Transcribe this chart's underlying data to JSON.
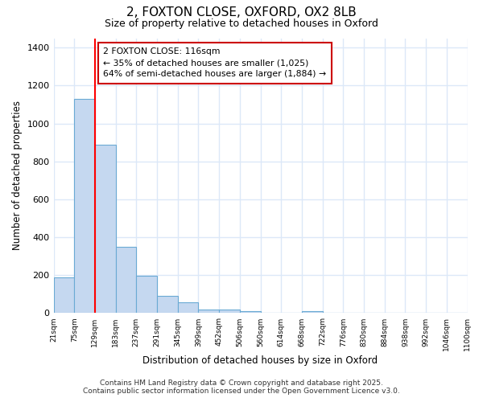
{
  "title1": "2, FOXTON CLOSE, OXFORD, OX2 8LB",
  "title2": "Size of property relative to detached houses in Oxford",
  "xlabel": "Distribution of detached houses by size in Oxford",
  "ylabel": "Number of detached properties",
  "bar_values": [
    190,
    1130,
    890,
    350,
    195,
    90,
    55,
    20,
    20,
    12,
    0,
    0,
    12,
    0,
    0,
    0,
    0,
    0,
    0,
    0
  ],
  "bin_labels": [
    "21sqm",
    "75sqm",
    "129sqm",
    "183sqm",
    "237sqm",
    "291sqm",
    "345sqm",
    "399sqm",
    "452sqm",
    "506sqm",
    "560sqm",
    "614sqm",
    "668sqm",
    "722sqm",
    "776sqm",
    "830sqm",
    "884sqm",
    "938sqm",
    "992sqm",
    "1046sqm",
    "1100sqm"
  ],
  "bar_color": "#c5d8f0",
  "bar_edge_color": "#6aaad4",
  "background_color": "#ffffff",
  "grid_color": "#dce8f8",
  "red_line_bin_index": 2,
  "annotation_text": "2 FOXTON CLOSE: 116sqm\n← 35% of detached houses are smaller (1,025)\n64% of semi-detached houses are larger (1,884) →",
  "annotation_box_color": "#ffffff",
  "annotation_box_edge": "#cc0000",
  "ylim": [
    0,
    1450
  ],
  "yticks": [
    0,
    200,
    400,
    600,
    800,
    1000,
    1200,
    1400
  ],
  "footer1": "Contains HM Land Registry data © Crown copyright and database right 2025.",
  "footer2": "Contains public sector information licensed under the Open Government Licence v3.0."
}
